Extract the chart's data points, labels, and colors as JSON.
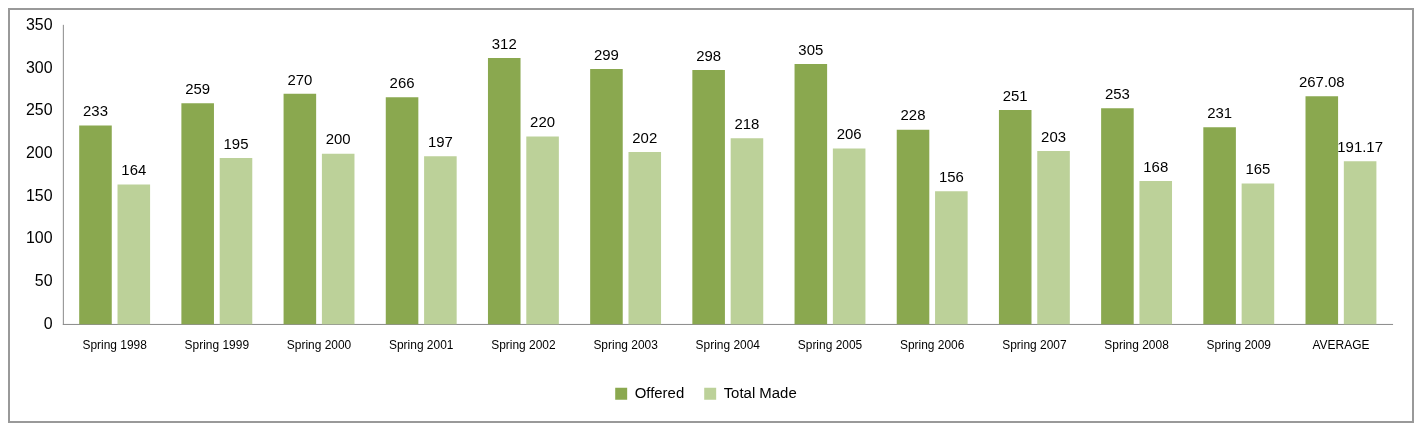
{
  "chart_data": {
    "type": "bar",
    "categories": [
      "Spring 1998",
      "Spring 1999",
      "Spring 2000",
      "Spring 2001",
      "Spring 2002",
      "Spring 2003",
      "Spring 2004",
      "Spring 2005",
      "Spring 2006",
      "Spring 2007",
      "Spring 2008",
      "Spring 2009",
      "AVERAGE"
    ],
    "series": [
      {
        "name": "Offered",
        "color": "#8aa84f",
        "values": [
          233,
          259,
          270,
          266,
          312,
          299,
          298,
          305,
          228,
          251,
          253,
          231,
          267.08
        ]
      },
      {
        "name": "Total Made",
        "color": "#bcd199",
        "values": [
          164,
          195,
          200,
          197,
          220,
          202,
          218,
          206,
          156,
          203,
          168,
          165,
          191.17
        ]
      }
    ],
    "ylim": [
      0,
      350
    ],
    "yticks": [
      0,
      50,
      100,
      150,
      200,
      250,
      300,
      350
    ],
    "grid": false,
    "legend": "bottom",
    "data_labels": true
  }
}
